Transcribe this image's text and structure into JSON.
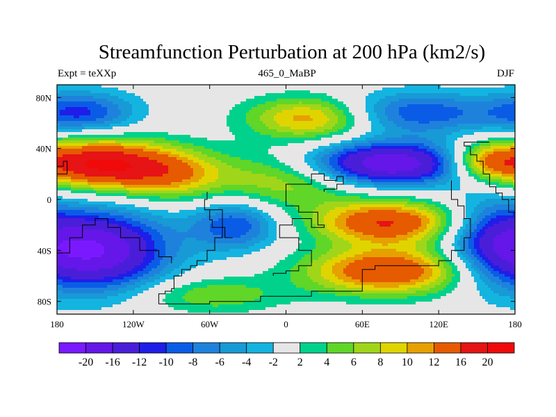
{
  "title": "Streamfunction Perturbation at 200 hPa (km2/s)",
  "left_string": "Expt = teXXp",
  "center_string": "465_0_MaBP",
  "right_string": "DJF",
  "chart_data": {
    "type": "heatmap",
    "projection": "cylindrical-equidistant",
    "lon_range": [
      -180,
      180
    ],
    "lat_range": [
      -90,
      90
    ],
    "x_ticks": [
      {
        "value": -180,
        "label": "180"
      },
      {
        "value": -120,
        "label": "120W"
      },
      {
        "value": -60,
        "label": "60W"
      },
      {
        "value": 0,
        "label": "0"
      },
      {
        "value": 60,
        "label": "60E"
      },
      {
        "value": 120,
        "label": "120E"
      },
      {
        "value": 180,
        "label": "180"
      }
    ],
    "y_ticks": [
      {
        "value": 80,
        "label": "80N"
      },
      {
        "value": 40,
        "label": "40N"
      },
      {
        "value": 0,
        "label": "0"
      },
      {
        "value": -40,
        "label": "40S"
      },
      {
        "value": -80,
        "label": "80S"
      }
    ],
    "contour_levels": [
      -20,
      -16,
      -12,
      -10,
      -8,
      -6,
      -4,
      -2,
      2,
      4,
      6,
      8,
      10,
      12,
      16,
      20
    ],
    "colorbar_labels": [
      "-20",
      "-16",
      "-12",
      "-10",
      "-8",
      "-6",
      "-4",
      "-2",
      "2",
      "4",
      "6",
      "8",
      "10",
      "12",
      "16",
      "20"
    ],
    "colors": [
      "#7a19ff",
      "#6417e8",
      "#4a1ed9",
      "#1e1ee8",
      "#0a5ce6",
      "#1e82dc",
      "#179ad6",
      "#14b4e0",
      "#e6e6e6",
      "#00d28c",
      "#5fd628",
      "#a0d619",
      "#e0d400",
      "#e6a000",
      "#e65a00",
      "#e61414",
      "#f00a0a"
    ],
    "centers": [
      {
        "lon": -150,
        "lat": 28,
        "value": 20,
        "spread_lon": 38,
        "spread_lat": 14
      },
      {
        "lon": -90,
        "lat": 20,
        "value": 10,
        "spread_lon": 30,
        "spread_lat": 14
      },
      {
        "lon": 0,
        "lat": 15,
        "value": 8,
        "spread_lon": 40,
        "spread_lat": 16
      },
      {
        "lon": 20,
        "lat": 64,
        "value": 12,
        "spread_lon": 35,
        "spread_lat": 12
      },
      {
        "lon": 80,
        "lat": 28,
        "value": -20,
        "spread_lon": 45,
        "spread_lat": 12
      },
      {
        "lon": 155,
        "lat": 30,
        "value": 10,
        "spread_lon": 20,
        "spread_lat": 10
      },
      {
        "lon": 100,
        "lat": 68,
        "value": -10,
        "spread_lon": 45,
        "spread_lat": 12
      },
      {
        "lon": -160,
        "lat": 68,
        "value": -10,
        "spread_lon": 30,
        "spread_lat": 12
      },
      {
        "lon": 80,
        "lat": -18,
        "value": 16,
        "spread_lon": 40,
        "spread_lat": 12
      },
      {
        "lon": 80,
        "lat": -56,
        "value": 16,
        "spread_lon": 45,
        "spread_lat": 13
      },
      {
        "lon": -150,
        "lat": -40,
        "value": -20,
        "spread_lon": 40,
        "spread_lat": 22
      },
      {
        "lon": -40,
        "lat": -20,
        "value": -10,
        "spread_lon": 25,
        "spread_lat": 14
      },
      {
        "lon": 160,
        "lat": -30,
        "value": -8,
        "spread_lon": 25,
        "spread_lat": 25
      },
      {
        "lon": -60,
        "lat": -75,
        "value": 6,
        "spread_lon": 40,
        "spread_lat": 10
      }
    ]
  }
}
